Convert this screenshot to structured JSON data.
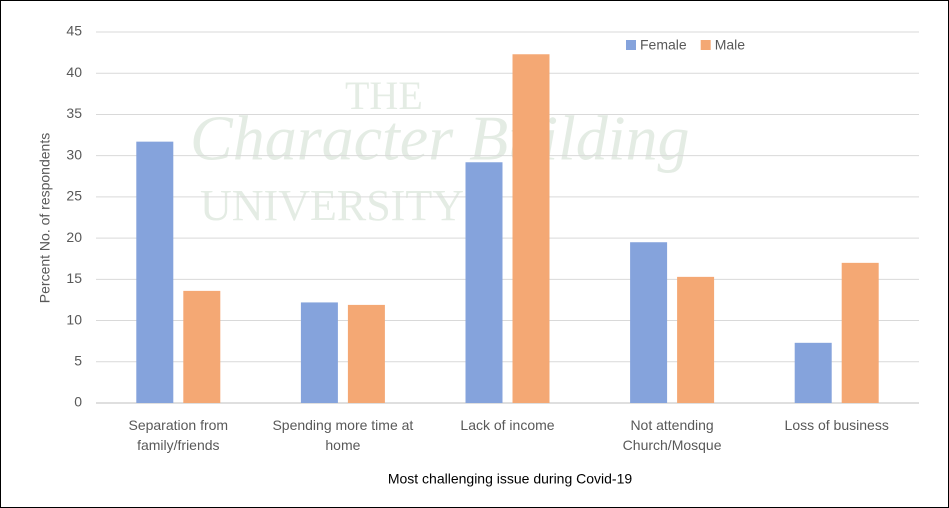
{
  "watermark": [
    "THE",
    "Character Building",
    "UNIVERSITY"
  ],
  "chart_data": {
    "type": "bar",
    "categories": [
      "Separation from family/friends",
      "Spending more time at home",
      "Lack of income",
      "Not attending Church/Mosque",
      "Loss of business"
    ],
    "series": [
      {
        "name": "Female",
        "color": "#85a3dc",
        "values": [
          31.7,
          12.2,
          29.2,
          19.5,
          7.3
        ]
      },
      {
        "name": "Male",
        "color": "#f4a874",
        "values": [
          13.6,
          11.9,
          42.3,
          15.3,
          17.0
        ]
      }
    ],
    "x_label": "Most challenging issue during Covid-19",
    "y_label": "Percent No. of respondents",
    "ylim": [
      0,
      45
    ],
    "yticks": [
      0,
      5,
      10,
      15,
      20,
      25,
      30,
      35,
      40,
      45
    ],
    "grid": true,
    "legend": "top-right"
  }
}
